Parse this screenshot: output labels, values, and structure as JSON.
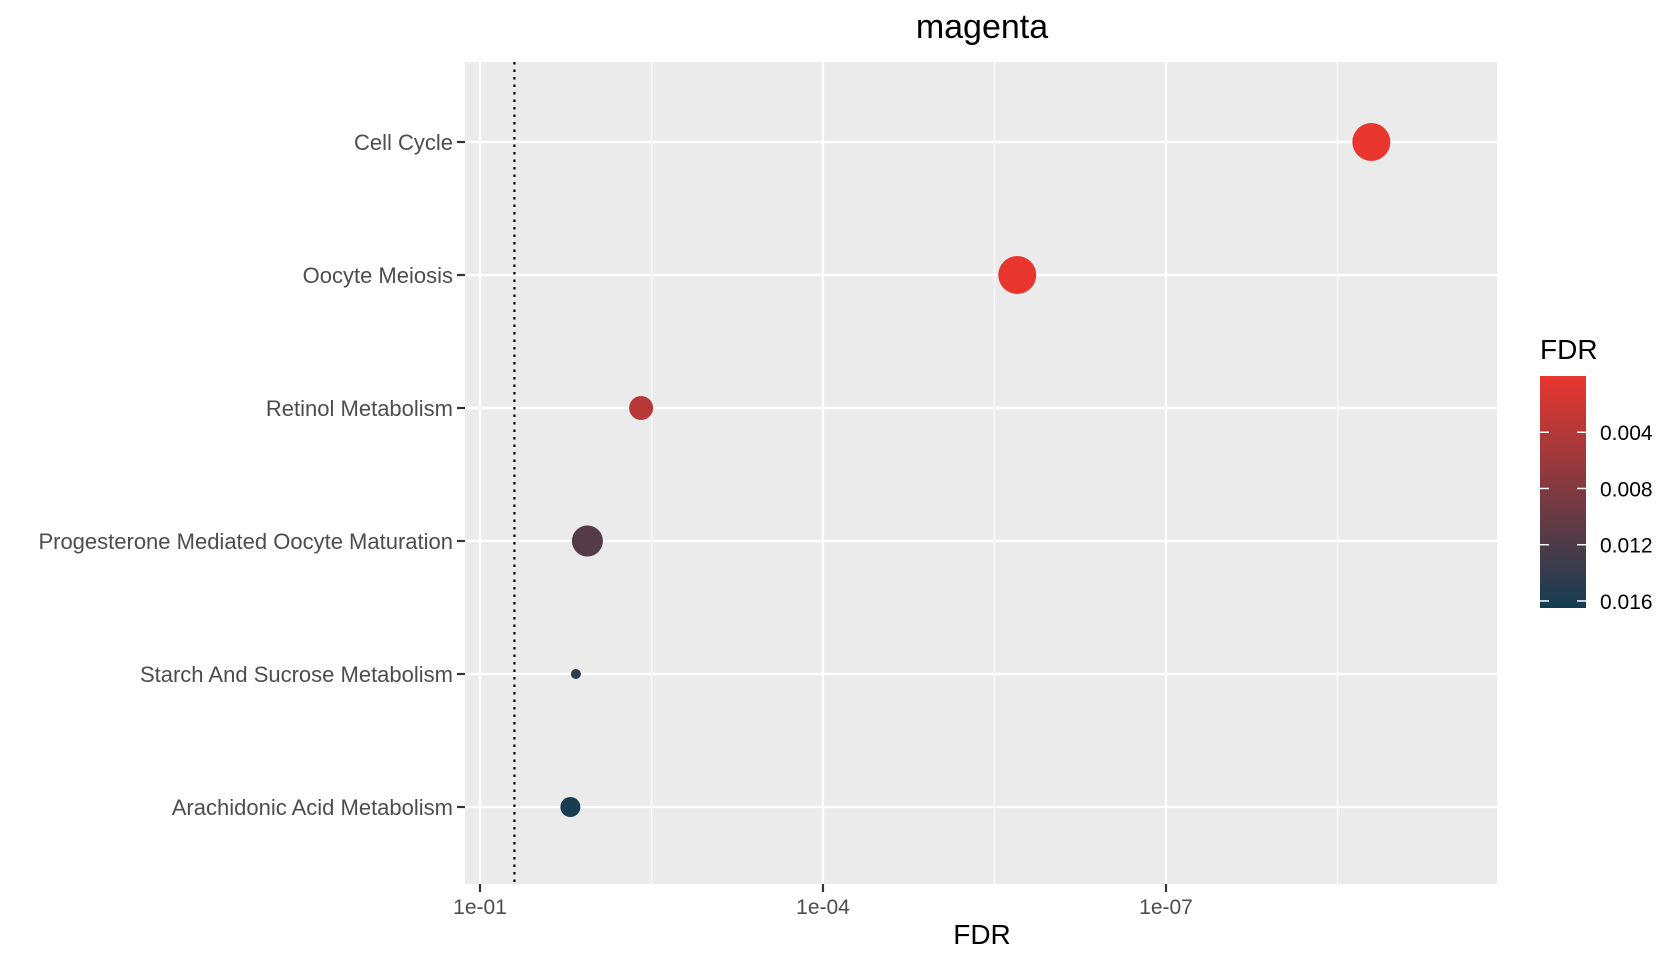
{
  "chart_data": {
    "type": "scatter",
    "title": "magenta",
    "xlabel": "FDR",
    "ylabel": "",
    "x_scale": "reverse-log10",
    "xlim": [
      0.2,
      1e-10
    ],
    "x_ticks": [
      0.1,
      0.0001,
      1e-07
    ],
    "x_tick_labels": [
      "1e-01",
      "1e-04",
      "1e-07"
    ],
    "reference_line": {
      "x": 0.05,
      "style": "dotted"
    },
    "categories": [
      "Cell Cycle",
      "Oocyte Meiosis",
      "Retinol Metabolism",
      "Progesterone Mediated Oocyte Maturation",
      "Starch And Sucrose Metabolism",
      "Arachidonic Acid Metabolism"
    ],
    "points": [
      {
        "category": "Cell Cycle",
        "x": 1.6e-09,
        "color_value": 1.6e-09,
        "size_rank": 5
      },
      {
        "category": "Oocyte Meiosis",
        "x": 2e-06,
        "color_value": 2e-06,
        "size_rank": 5
      },
      {
        "category": "Retinol Metabolism",
        "x": 0.0039,
        "color_value": 0.0039,
        "size_rank": 3
      },
      {
        "category": "Progesterone Mediated Oocyte Maturation",
        "x": 0.0115,
        "color_value": 0.0115,
        "size_rank": 4
      },
      {
        "category": "Starch And Sucrose Metabolism",
        "x": 0.0145,
        "color_value": 0.0145,
        "size_rank": 1
      },
      {
        "category": "Arachidonic Acid Metabolism",
        "x": 0.0162,
        "color_value": 0.0162,
        "size_rank": 2
      }
    ],
    "legend": {
      "title": "FDR",
      "position": "right",
      "type": "colorbar",
      "range": [
        0,
        0.0165
      ],
      "ticks": [
        0.004,
        0.008,
        0.012,
        0.016
      ],
      "tick_labels": [
        "0.004",
        "0.008",
        "0.012",
        "0.016"
      ],
      "low_color": "#e8362f",
      "high_color": "#143d52"
    },
    "colors": {
      "panel_background": "#ebebeb",
      "grid": "#ffffff",
      "axis_text": "#4d4d4d"
    },
    "grid": true
  }
}
